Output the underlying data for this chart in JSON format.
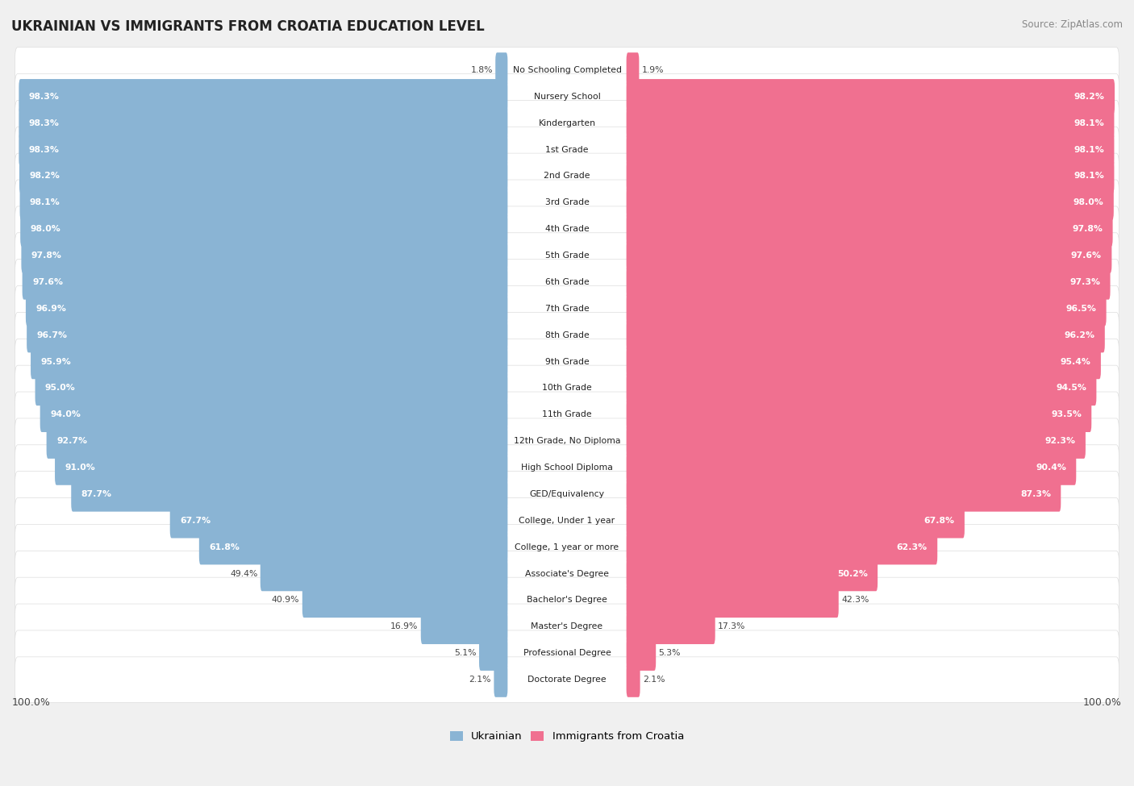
{
  "title": "UKRAINIAN VS IMMIGRANTS FROM CROATIA EDUCATION LEVEL",
  "source": "Source: ZipAtlas.com",
  "categories": [
    "No Schooling Completed",
    "Nursery School",
    "Kindergarten",
    "1st Grade",
    "2nd Grade",
    "3rd Grade",
    "4th Grade",
    "5th Grade",
    "6th Grade",
    "7th Grade",
    "8th Grade",
    "9th Grade",
    "10th Grade",
    "11th Grade",
    "12th Grade, No Diploma",
    "High School Diploma",
    "GED/Equivalency",
    "College, Under 1 year",
    "College, 1 year or more",
    "Associate's Degree",
    "Bachelor's Degree",
    "Master's Degree",
    "Professional Degree",
    "Doctorate Degree"
  ],
  "ukrainian": [
    1.8,
    98.3,
    98.3,
    98.3,
    98.2,
    98.1,
    98.0,
    97.8,
    97.6,
    96.9,
    96.7,
    95.9,
    95.0,
    94.0,
    92.7,
    91.0,
    87.7,
    67.7,
    61.8,
    49.4,
    40.9,
    16.9,
    5.1,
    2.1
  ],
  "croatia": [
    1.9,
    98.2,
    98.1,
    98.1,
    98.1,
    98.0,
    97.8,
    97.6,
    97.3,
    96.5,
    96.2,
    95.4,
    94.5,
    93.5,
    92.3,
    90.4,
    87.3,
    67.8,
    62.3,
    50.2,
    42.3,
    17.3,
    5.3,
    2.1
  ],
  "ukrainian_color": "#8ab4d4",
  "croatia_color": "#f07090",
  "row_color_odd": "#e8e8e8",
  "row_color_even": "#f2f2f2",
  "background_color": "#f0f0f0",
  "legend_ukrainian": "Ukrainian",
  "legend_croatia": "Immigrants from Croatia",
  "label_fontsize": 7.8,
  "value_fontsize": 7.8,
  "title_fontsize": 12,
  "source_fontsize": 8.5
}
